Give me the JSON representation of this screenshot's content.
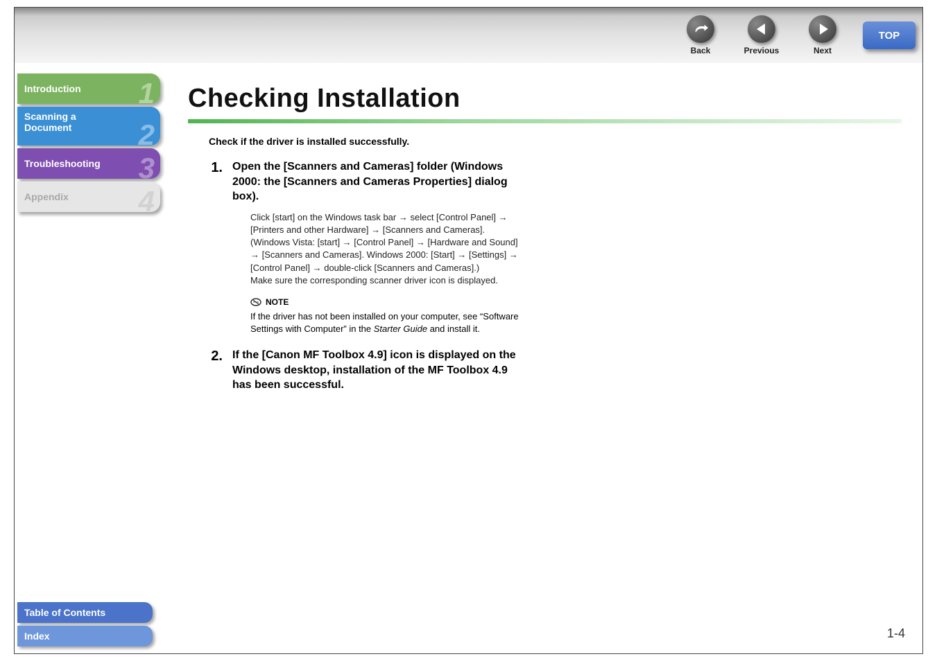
{
  "nav": {
    "back_label": "Back",
    "prev_label": "Previous",
    "next_label": "Next",
    "top_label": "TOP"
  },
  "sidebar": {
    "chapters": [
      {
        "label": "Introduction",
        "num": "1",
        "bg": "#7cb360",
        "fg": "#ffffff",
        "num_color": "#cfe6c2"
      },
      {
        "label": "Scanning a Document",
        "num": "2",
        "bg": "#3b8fd4",
        "fg": "#ffffff",
        "num_color": "#b2d7f2",
        "tall": true
      },
      {
        "label": "Troubleshooting",
        "num": "3",
        "bg": "#7e4fb0",
        "fg": "#ffffff",
        "num_color": "#c9b4e0"
      },
      {
        "label": "Appendix",
        "num": "4",
        "bg": "#e6e6e6",
        "fg": "#a9a9a9",
        "num_color": "#c8c8c8"
      }
    ],
    "toc_label": "Table of Contents",
    "toc_bg": "#4a73c9",
    "index_label": "Index",
    "index_bg": "#6e96da"
  },
  "content": {
    "title": "Checking Installation",
    "intro": "Check if the driver is installed successfully.",
    "steps": [
      {
        "num": "1.",
        "heading": "Open the [Scanners and Cameras] folder (Windows 2000: the [Scanners and Cameras Properties] dialog box).",
        "detail_html": "Click [start] on the Windows task bar → select [Control Panel] → [Printers and other Hardware] → [Scanners and Cameras]. (Windows Vista: [start] → [Control Panel] → [Hardware and Sound] → [Scanners and Cameras]. Windows 2000: [Start] → [Settings] → [Control Panel] → double-click [Scanners and Cameras].)\nMake sure the corresponding scanner driver icon is displayed.",
        "note_label": "NOTE",
        "note_pre": "If the driver has not been installed on your computer, see “Software Settings with Computer” in the ",
        "note_italic": "Starter Guide",
        "note_post": " and install it."
      },
      {
        "num": "2.",
        "heading": "If the [Canon MF Toolbox 4.9] icon is displayed on the Windows desktop, installation of the MF Toolbox 4.9 has been successful."
      }
    ]
  },
  "page_number": "1-4"
}
